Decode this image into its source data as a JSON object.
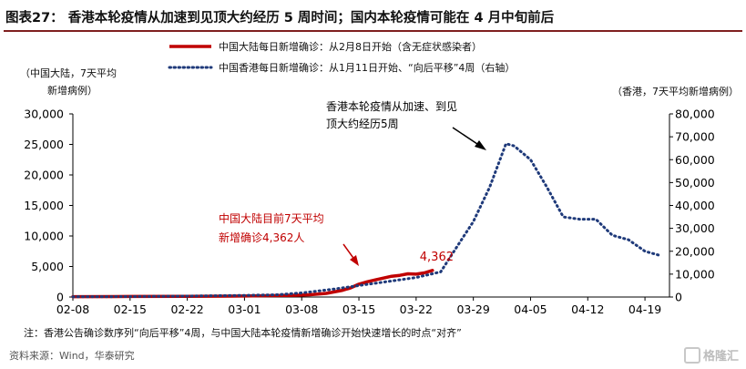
{
  "header": {
    "title": "图表27： 香港本轮疫情从加速到见顶大约经历 5 周时间；国内本轮疫情可能在 4 月中旬前后"
  },
  "footer": {
    "note": "注：香港公告确诊数序列“向后平移”4周，与中国大陆本轮疫情新增确诊开始快速增长的时点“对齐”",
    "source": "资料来源：Wind，华泰研究",
    "watermark": "格隆汇"
  },
  "colors": {
    "mainland": "#c00000",
    "hongkong": "#1f3a7a",
    "annotation_red": "#c00000",
    "axis": "#000000",
    "title_rule": "#7f1f1f"
  },
  "chart_data": {
    "type": "line",
    "title": "",
    "x_dates": [
      "2022-02-08",
      "2022-02-15",
      "2022-02-22",
      "2022-03-01",
      "2022-03-08",
      "2022-03-15",
      "2022-03-22",
      "2022-03-29",
      "2022-04-05",
      "2022-04-12",
      "2022-04-19"
    ],
    "x_tick_labels": [
      "02-08",
      "02-15",
      "02-22",
      "03-01",
      "03-08",
      "03-15",
      "03-22",
      "03-29",
      "04-05",
      "04-12",
      "04-19"
    ],
    "y_left": {
      "label_lines": [
        "（中国大陆，7天平均",
        "新增病例）"
      ],
      "ylim": [
        0,
        30000
      ],
      "ticks": [
        0,
        5000,
        10000,
        15000,
        20000,
        25000,
        30000
      ],
      "tick_labels": [
        "0",
        "5,000",
        "10,000",
        "15,000",
        "20,000",
        "25,000",
        "30,000"
      ]
    },
    "y_right": {
      "label": "（香港，7天平均新增病例）",
      "ylim": [
        0,
        80000
      ],
      "ticks": [
        0,
        10000,
        20000,
        30000,
        40000,
        50000,
        60000,
        70000,
        80000
      ],
      "tick_labels": [
        "0",
        "10,000",
        "20,000",
        "30,000",
        "40,000",
        "50,000",
        "60,000",
        "70,000",
        "80,000"
      ]
    },
    "series": [
      {
        "name": "中国大陆每日新增确诊：从2月8日开始（含无症状感染者）",
        "axis": "left",
        "style": "solid",
        "points": [
          [
            "2022-02-08",
            60
          ],
          [
            "2022-02-15",
            90
          ],
          [
            "2022-02-22",
            110
          ],
          [
            "2022-03-01",
            160
          ],
          [
            "2022-03-04",
            220
          ],
          [
            "2022-03-07",
            280
          ],
          [
            "2022-03-09",
            380
          ],
          [
            "2022-03-11",
            600
          ],
          [
            "2022-03-13",
            1100
          ],
          [
            "2022-03-14",
            1500
          ],
          [
            "2022-03-15",
            2100
          ],
          [
            "2022-03-16",
            2500
          ],
          [
            "2022-03-17",
            2800
          ],
          [
            "2022-03-18",
            3100
          ],
          [
            "2022-03-19",
            3400
          ],
          [
            "2022-03-20",
            3550
          ],
          [
            "2022-03-21",
            3800
          ],
          [
            "2022-03-22",
            3750
          ],
          [
            "2022-03-23",
            3950
          ],
          [
            "2022-03-24",
            4362
          ]
        ]
      },
      {
        "name": "中国香港每日新增确诊：从1月11日开始、“向后平移”4周（右轴）",
        "axis": "right",
        "style": "dotted",
        "points": [
          [
            "2022-02-08",
            100
          ],
          [
            "2022-02-15",
            200
          ],
          [
            "2022-02-22",
            400
          ],
          [
            "2022-03-01",
            700
          ],
          [
            "2022-03-05",
            1000
          ],
          [
            "2022-03-08",
            1800
          ],
          [
            "2022-03-12",
            3500
          ],
          [
            "2022-03-15",
            5000
          ],
          [
            "2022-03-19",
            7000
          ],
          [
            "2022-03-22",
            8500
          ],
          [
            "2022-03-25",
            11000
          ],
          [
            "2022-03-27",
            22000
          ],
          [
            "2022-03-29",
            33000
          ],
          [
            "2022-03-31",
            48000
          ],
          [
            "2022-04-02",
            67000
          ],
          [
            "2022-04-03",
            66000
          ],
          [
            "2022-04-05",
            60000
          ],
          [
            "2022-04-07",
            48000
          ],
          [
            "2022-04-09",
            35000
          ],
          [
            "2022-04-11",
            34000
          ],
          [
            "2022-04-13",
            34000
          ],
          [
            "2022-04-15",
            27000
          ],
          [
            "2022-04-17",
            25000
          ],
          [
            "2022-04-19",
            20000
          ],
          [
            "2022-04-21",
            18000
          ]
        ]
      }
    ],
    "data_label": {
      "text": "4,362",
      "date": "2022-03-24",
      "value": 4362
    },
    "annotations": [
      {
        "lines": [
          "中国大陆目前7天平均",
          "新增确诊4,362人"
        ],
        "color": "#c00000"
      },
      {
        "lines": [
          "香港本轮疫情从加速、到见",
          "顶大约经历5周"
        ],
        "color": "#000000"
      }
    ],
    "grid": false,
    "legend_position": "top"
  }
}
